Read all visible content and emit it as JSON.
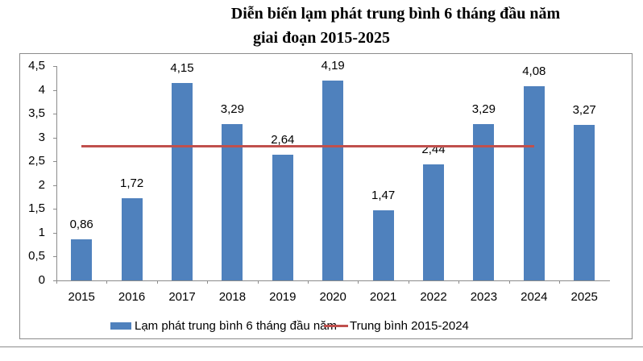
{
  "title": {
    "line1": "Diễn biến lạm phát trung bình 6 tháng đầu năm",
    "line2": "giai đoạn 2015-2025"
  },
  "legend": {
    "bar_label": "Lạm phát trung bình 6 tháng đầu năm",
    "line_label": "Trung bình 2015-2024"
  },
  "colors": {
    "bar": "#4f81bd",
    "average_line": "#c0504d"
  },
  "y_ticks": [
    "4,5",
    "4",
    "3,5",
    "3",
    "2,5",
    "2",
    "1,5",
    "1",
    "0,5",
    "0"
  ],
  "chart_data": {
    "type": "bar",
    "title": "Diễn biến lạm phát trung bình 6 tháng đầu năm giai đoạn 2015-2025",
    "xlabel": "",
    "ylabel": "",
    "ylim": [
      0,
      4.5
    ],
    "grid": false,
    "legend_position": "bottom",
    "categories": [
      "2015",
      "2016",
      "2017",
      "2018",
      "2019",
      "2020",
      "2021",
      "2022",
      "2023",
      "2024",
      "2025"
    ],
    "series": [
      {
        "name": "Lạm phát trung bình 6 tháng đầu năm",
        "type": "bar",
        "values": [
          0.86,
          1.72,
          4.15,
          3.29,
          2.64,
          4.19,
          1.47,
          2.44,
          3.29,
          4.08,
          3.27
        ],
        "labels": [
          "0,86",
          "1,72",
          "4,15",
          "3,29",
          "2,64",
          "4,19",
          "1,47",
          "2,44",
          "3,29",
          "4,08",
          "3,27"
        ]
      },
      {
        "name": "Trung bình 2015-2024",
        "type": "line",
        "x_range": [
          "2015",
          "2024"
        ],
        "value": 2.82
      }
    ]
  }
}
